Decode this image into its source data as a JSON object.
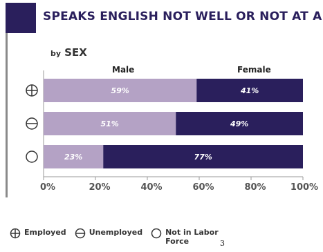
{
  "title": "SPEAKS ENGLISH NOT WELL OR NOT AT ALL",
  "subtitle_prefix": "by",
  "subtitle_main": "SEX",
  "page_number": "3",
  "colors": {
    "male": "#b4a2c5",
    "female": "#2a1f5c",
    "title": "#2a1f5c",
    "axis": "#8a8a8a"
  },
  "legend": [
    {
      "icon": "circle-plus-icon",
      "label": "Employed"
    },
    {
      "icon": "circle-minus-icon",
      "label": "Unemployed"
    },
    {
      "icon": "circle-icon",
      "label": "Not in Labor Force"
    }
  ],
  "chart_data": {
    "type": "bar",
    "orientation": "horizontal",
    "stacked": true,
    "percent": true,
    "categories": [
      "Employed",
      "Unemployed",
      "Not in Labor Force"
    ],
    "category_icons": [
      "circle-plus-icon",
      "circle-minus-icon",
      "circle-icon"
    ],
    "series": [
      {
        "name": "Male",
        "values": [
          59,
          51,
          23
        ],
        "labels": [
          "59%",
          "51%",
          "23%"
        ]
      },
      {
        "name": "Female",
        "values": [
          41,
          49,
          77
        ],
        "labels": [
          "41%",
          "49%",
          "77%"
        ]
      }
    ],
    "xlim": [
      0,
      100
    ],
    "xticks": [
      "0%",
      "20%",
      "40%",
      "60%",
      "80%",
      "100%"
    ],
    "grid": false
  }
}
